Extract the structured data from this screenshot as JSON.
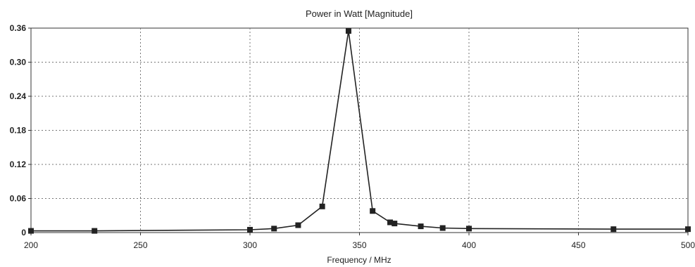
{
  "chart_data": {
    "type": "line",
    "title": "Power in Watt [Magnitude]",
    "xlabel": "Frequency / MHz",
    "ylabel": "",
    "xlim": [
      200,
      500
    ],
    "ylim": [
      0,
      0.36
    ],
    "xticks": [
      "200",
      "250",
      "300",
      "350",
      "400",
      "450",
      "500"
    ],
    "yticks": [
      "0",
      "0.06",
      "0.12",
      "0.18",
      "0.24",
      "0.30",
      "0.36"
    ],
    "grid": true,
    "legend": "none",
    "series": [
      {
        "color": "#222222",
        "marker": "square",
        "x": [
          200,
          229,
          300,
          311,
          322,
          333,
          345,
          356,
          364,
          366,
          378,
          388,
          400,
          466,
          500
        ],
        "y": [
          0.003,
          0.003,
          0.005,
          0.007,
          0.013,
          0.046,
          0.355,
          0.038,
          0.018,
          0.016,
          0.011,
          0.008,
          0.007,
          0.006,
          0.006
        ]
      }
    ]
  }
}
